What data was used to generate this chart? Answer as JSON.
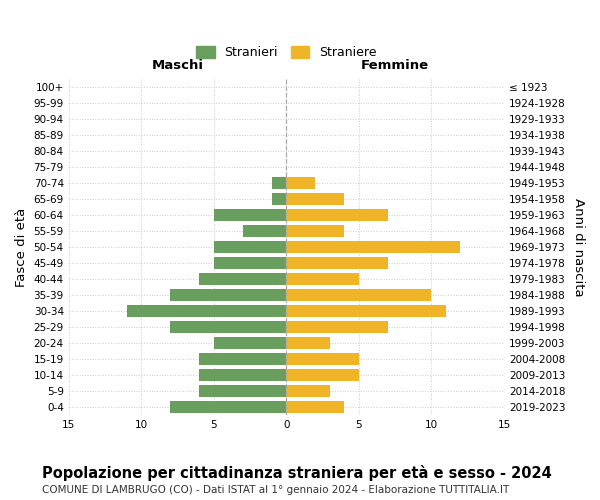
{
  "age_groups": [
    "100+",
    "95-99",
    "90-94",
    "85-89",
    "80-84",
    "75-79",
    "70-74",
    "65-69",
    "60-64",
    "55-59",
    "50-54",
    "45-49",
    "40-44",
    "35-39",
    "30-34",
    "25-29",
    "20-24",
    "15-19",
    "10-14",
    "5-9",
    "0-4"
  ],
  "birth_years": [
    "≤ 1923",
    "1924-1928",
    "1929-1933",
    "1934-1938",
    "1939-1943",
    "1944-1948",
    "1949-1953",
    "1954-1958",
    "1959-1963",
    "1964-1968",
    "1969-1973",
    "1974-1978",
    "1979-1983",
    "1984-1988",
    "1989-1993",
    "1994-1998",
    "1999-2003",
    "2004-2008",
    "2009-2013",
    "2014-2018",
    "2019-2023"
  ],
  "maschi": [
    0,
    0,
    0,
    0,
    0,
    0,
    1,
    1,
    5,
    3,
    5,
    5,
    6,
    8,
    11,
    8,
    5,
    6,
    6,
    6,
    8
  ],
  "femmine": [
    0,
    0,
    0,
    0,
    0,
    0,
    2,
    4,
    7,
    4,
    12,
    7,
    5,
    10,
    11,
    7,
    3,
    5,
    5,
    3,
    4
  ],
  "color_maschi": "#6a9e5e",
  "color_femmine": "#f0b429",
  "xlim": 15,
  "title": "Popolazione per cittadinanza straniera per età e sesso - 2024",
  "subtitle": "COMUNE DI LAMBRUGO (CO) - Dati ISTAT al 1° gennaio 2024 - Elaborazione TUTTITALIA.IT",
  "label_maschi": "Maschi",
  "label_femmine": "Femmine",
  "legend_stranieri": "Stranieri",
  "legend_straniere": "Straniere",
  "ylabel_left": "Fasce di età",
  "ylabel_right": "Anni di nascita",
  "background_color": "#ffffff",
  "grid_color": "#cccccc",
  "centerline_color": "#aaaaaa",
  "tick_fontsize": 7.5,
  "label_fontsize": 9.5,
  "title_fontsize": 10.5,
  "subtitle_fontsize": 7.5
}
